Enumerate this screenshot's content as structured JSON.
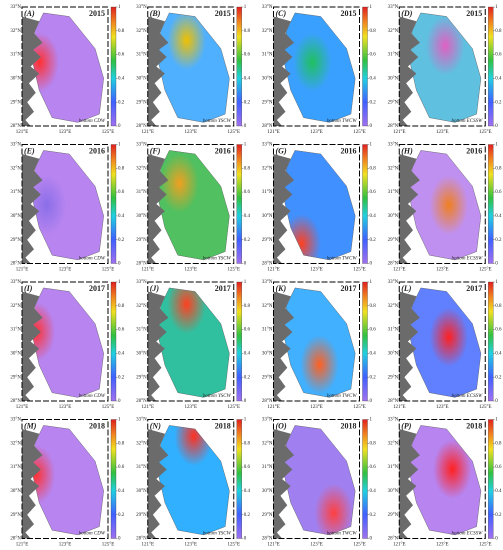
{
  "panels": [
    {
      "label": "(A)",
      "year": "2015",
      "water_mass": "bottom CDW"
    },
    {
      "label": "(B)",
      "year": "2015",
      "water_mass": "bottom YSCW"
    },
    {
      "label": "(C)",
      "year": "2015",
      "water_mass": "bottom TWCW"
    },
    {
      "label": "(D)",
      "year": "2015",
      "water_mass": "bottom ECSSW"
    },
    {
      "label": "(E)",
      "year": "2016",
      "water_mass": "bottom CDW"
    },
    {
      "label": "(F)",
      "year": "2016",
      "water_mass": "bottom YSCW"
    },
    {
      "label": "(G)",
      "year": "2016",
      "water_mass": "bottom TWCW"
    },
    {
      "label": "(H)",
      "year": "2016",
      "water_mass": "bottom ECSSW"
    },
    {
      "label": "(I)",
      "year": "2017",
      "water_mass": "bottom CDW"
    },
    {
      "label": "(J)",
      "year": "2017",
      "water_mass": "bottom YSCW"
    },
    {
      "label": "(K)",
      "year": "2017",
      "water_mass": "bottom TWCW"
    },
    {
      "label": "(L)",
      "year": "2017",
      "water_mass": "bottom ECSSW"
    },
    {
      "label": "(M)",
      "year": "2018",
      "water_mass": "bottom CDW"
    },
    {
      "label": "(N)",
      "year": "2018",
      "water_mass": "bottom YSCW"
    },
    {
      "label": "(O)",
      "year": "2018",
      "water_mass": "bottom TWCW"
    },
    {
      "label": "(P)",
      "year": "2018",
      "water_mass": "bottom ECSSW"
    }
  ],
  "lat_labels": [
    "33°N",
    "32°N",
    "31°N",
    "30°N",
    "29°N",
    "28°N"
  ],
  "lon_labels": [
    "121°E",
    "123°E",
    "125°E"
  ],
  "colorbar_ticks": [
    0,
    0.2,
    0.4,
    0.6,
    0.8,
    1
  ]
}
